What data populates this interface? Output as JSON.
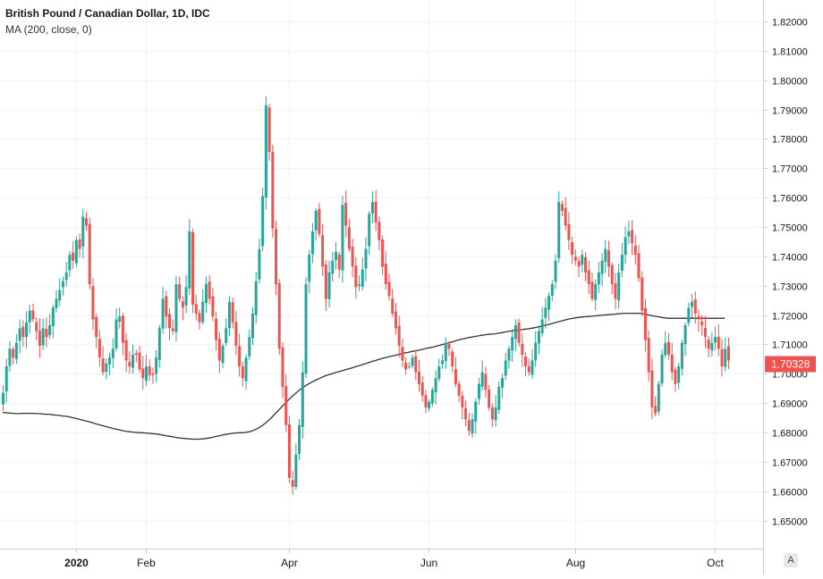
{
  "legend": {
    "title": "British Pound / Canadian Dollar, 1D, IDC",
    "indicator": "MA (200, close, 0)"
  },
  "price_scale": {
    "last_price_label": "1.70328",
    "auto_label": "A"
  },
  "colors": {
    "up": "#26a69a",
    "down": "#ef5350",
    "ma": "#333333",
    "grid": "#f0f3fa",
    "price_tag": "#ef5350"
  },
  "chart_data": {
    "type": "candlestick",
    "title": "British Pound / Canadian Dollar, 1D, IDC",
    "ylim": [
      1.645,
      1.825
    ],
    "yticks": [
      "1.65000",
      "1.66000",
      "1.67000",
      "1.68000",
      "1.69000",
      "1.70000",
      "1.71000",
      "1.72000",
      "1.73000",
      "1.74000",
      "1.75000",
      "1.76000",
      "1.77000",
      "1.78000",
      "1.79000",
      "1.80000",
      "1.81000",
      "1.82000"
    ],
    "xticks": [
      {
        "label": "2020",
        "index": 22
      },
      {
        "label": "Feb",
        "index": 43
      },
      {
        "label": "Apr",
        "index": 86
      },
      {
        "label": "Jun",
        "index": 128
      },
      {
        "label": "Aug",
        "index": 172
      },
      {
        "label": "Oct",
        "index": 214
      }
    ],
    "series_close": [
      1.6935,
      1.7025,
      1.7085,
      1.7055,
      1.7105,
      1.7155,
      1.7125,
      1.7175,
      1.7215,
      1.7185,
      1.7145,
      1.7095,
      1.7155,
      1.7125,
      1.7165,
      1.7225,
      1.7255,
      1.7285,
      1.7315,
      1.7345,
      1.7405,
      1.7385,
      1.7455,
      1.7425,
      1.7535,
      1.7505,
      1.7305,
      1.7185,
      1.7125,
      1.7055,
      1.7005,
      1.7035,
      1.7055,
      1.7085,
      1.7185,
      1.7195,
      1.7105,
      1.7045,
      1.7025,
      1.7065,
      1.7065,
      1.7015,
      1.6985,
      1.7025,
      1.6995,
      1.6995,
      1.7055,
      1.7155,
      1.7255,
      1.7195,
      1.7155,
      1.7145,
      1.7305,
      1.7255,
      1.7225,
      1.7295,
      1.7485,
      1.7235,
      1.7205,
      1.7175,
      1.7245,
      1.7305,
      1.7255,
      1.7195,
      1.7115,
      1.7045,
      1.7095,
      1.7155,
      1.7245,
      1.7175,
      1.7095,
      1.7025,
      1.6985,
      1.7055,
      1.7125,
      1.7205,
      1.7315,
      1.7425,
      1.7605,
      1.7915,
      1.7755,
      1.7495,
      1.7305,
      1.7085,
      1.6955,
      1.6825,
      1.6645,
      1.6615,
      1.6725,
      1.6825,
      1.7005,
      1.7305,
      1.7405,
      1.7485,
      1.7555,
      1.7475,
      1.7365,
      1.7255,
      1.7345,
      1.7385,
      1.7415,
      1.7355,
      1.7575,
      1.7505,
      1.7425,
      1.7365,
      1.7295,
      1.7305,
      1.7355,
      1.7425,
      1.7545,
      1.7585,
      1.7515,
      1.7455,
      1.7365,
      1.7305,
      1.7265,
      1.7205,
      1.7155,
      1.7095,
      1.7045,
      1.7015,
      1.7025,
      1.7055,
      1.7005,
      1.6965,
      1.6925,
      1.6885,
      1.6905,
      1.6945,
      1.6985,
      1.7025,
      1.7045,
      1.7105,
      1.7085,
      1.7025,
      1.6965,
      1.6925,
      1.6885,
      1.6845,
      1.6805,
      1.6845,
      1.6905,
      1.6965,
      1.7005,
      1.6945,
      1.6885,
      1.6845,
      1.6885,
      1.6955,
      1.6985,
      1.7045,
      1.7085,
      1.7125,
      1.7165,
      1.7105,
      1.7065,
      1.7025,
      1.7005,
      1.7045,
      1.7105,
      1.7145,
      1.7185,
      1.7225,
      1.7265,
      1.7305,
      1.7385,
      1.7585,
      1.7555,
      1.7505,
      1.7455,
      1.7405,
      1.7385,
      1.7365,
      1.7405,
      1.7345,
      1.7305,
      1.7255,
      1.7305,
      1.7345,
      1.7385,
      1.7425,
      1.7365,
      1.7305,
      1.7255,
      1.7345,
      1.7405,
      1.7465,
      1.7485,
      1.7445,
      1.7405,
      1.7325,
      1.7215,
      1.7115,
      1.7005,
      1.6885,
      1.6865,
      1.6965,
      1.7065,
      1.7105,
      1.7065,
      1.7005,
      1.6965,
      1.7025,
      1.7105,
      1.7165,
      1.7225,
      1.7245,
      1.7205,
      1.7185,
      1.7165,
      1.7125,
      1.7085,
      1.7105,
      1.7125,
      1.7085,
      1.7025,
      1.7085,
      1.7045
    ],
    "series_ma200": [
      1.6868,
      1.6867,
      1.6866,
      1.6865,
      1.6864,
      1.6864,
      1.6865,
      1.6865,
      1.6865,
      1.6865,
      1.6864,
      1.6864,
      1.6863,
      1.6862,
      1.6862,
      1.686,
      1.6859,
      1.6858,
      1.6856,
      1.6855,
      1.6853,
      1.685,
      1.6848,
      1.6845,
      1.6842,
      1.6839,
      1.6836,
      1.6833,
      1.6829,
      1.6826,
      1.6823,
      1.682,
      1.6817,
      1.6814,
      1.6811,
      1.6809,
      1.6806,
      1.6804,
      1.6803,
      1.6801,
      1.68,
      1.6799,
      1.6799,
      1.6798,
      1.6797,
      1.6796,
      1.6795,
      1.6793,
      1.6791,
      1.6789,
      1.6787,
      1.6785,
      1.6783,
      1.6781,
      1.678,
      1.6779,
      1.6778,
      1.6777,
      1.6777,
      1.6777,
      1.6778,
      1.6779,
      1.6781,
      1.6783,
      1.6786,
      1.6788,
      1.6791,
      1.6793,
      1.6795,
      1.6797,
      1.6798,
      1.6799,
      1.6799,
      1.68,
      1.6802,
      1.6805,
      1.681,
      1.6816,
      1.6823,
      1.6832,
      1.6842,
      1.6853,
      1.6865,
      1.6877,
      1.6889,
      1.6901,
      1.6912,
      1.6923,
      1.6933,
      1.6943,
      1.6951,
      1.6959,
      1.6966,
      1.6972,
      1.6978,
      1.6983,
      1.6988,
      1.6993,
      1.6997,
      1.7,
      1.7004,
      1.7007,
      1.701,
      1.7014,
      1.7017,
      1.702,
      1.7024,
      1.7027,
      1.7031,
      1.7034,
      1.7038,
      1.7042,
      1.7045,
      1.7049,
      1.7052,
      1.7055,
      1.7058,
      1.706,
      1.7063,
      1.7066,
      1.7068,
      1.7071,
      1.7073,
      1.7076,
      1.7078,
      1.708,
      1.7083,
      1.7085,
      1.7088,
      1.709,
      1.7093,
      1.7096,
      1.7099,
      1.7102,
      1.7105,
      1.7108,
      1.7112,
      1.7115,
      1.7118,
      1.712,
      1.7123,
      1.7125,
      1.7127,
      1.7129,
      1.7131,
      1.7133,
      1.7134,
      1.7135,
      1.7136,
      1.7138,
      1.714,
      1.7142,
      1.7144,
      1.7146,
      1.7148,
      1.7149,
      1.715,
      1.7152,
      1.7153,
      1.7155,
      1.7157,
      1.716,
      1.7162,
      1.7165,
      1.7168,
      1.7171,
      1.7174,
      1.7177,
      1.718,
      1.7183,
      1.7186,
      1.7188,
      1.719,
      1.7192,
      1.7193,
      1.7194,
      1.7195,
      1.7196,
      1.7197,
      1.7198,
      1.7199,
      1.72,
      1.7201,
      1.7202,
      1.7203,
      1.7204,
      1.7205,
      1.7206,
      1.7206,
      1.7206,
      1.7206,
      1.7206,
      1.7205,
      1.7203,
      1.72,
      1.7198,
      1.7196,
      1.7194,
      1.7192,
      1.719,
      1.7189,
      1.7189,
      1.7189,
      1.7189,
      1.7189,
      1.7189,
      1.7189,
      1.7189,
      1.7189,
      1.7189,
      1.7189,
      1.7189,
      1.7189,
      1.7189,
      1.7189,
      1.7189,
      1.7189,
      1.7189
    ],
    "last_price": 1.70328
  }
}
